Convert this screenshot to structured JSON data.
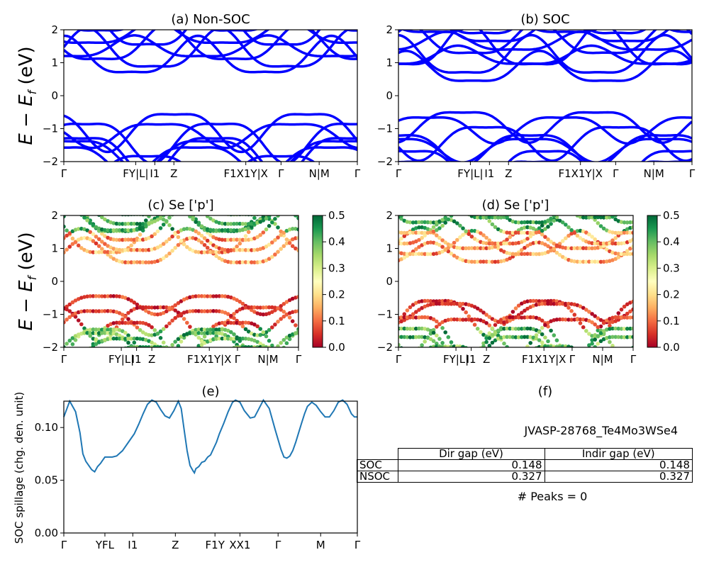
{
  "chart_data": [
    {
      "id": "a",
      "type": "line",
      "title": "(a) Non-SOC",
      "ylabel": "E - E_f (eV)",
      "ylim": [
        -2,
        2
      ],
      "yticks": [
        "−2",
        "−1",
        "0",
        "1",
        "2"
      ],
      "kpath_labels": [
        "Γ",
        "FY|L|",
        "I1",
        "Z",
        "F1X1Y|X",
        "Γ",
        "N|M",
        "Γ"
      ],
      "band_color": "#0000ff",
      "gap_ev": 0.327
    },
    {
      "id": "b",
      "type": "line",
      "title": "(b) SOC",
      "ylim": [
        -2,
        2
      ],
      "yticks": [
        "−2",
        "−1",
        "0",
        "1",
        "2"
      ],
      "kpath_labels": [
        "Γ",
        "FY|L|",
        "I1",
        "Z",
        "F1X1Y|X",
        "Γ",
        "N|M",
        "Γ"
      ],
      "band_color": "#0000ff",
      "gap_ev": 0.148
    },
    {
      "id": "c",
      "type": "scatter",
      "title": "(c)  Se ['p']",
      "ylabel": "E - E_f (eV)",
      "ylim": [
        -2,
        2
      ],
      "yticks": [
        "−2",
        "−1",
        "0",
        "1",
        "2"
      ],
      "kpath_labels": [
        "Γ",
        "FY|L|",
        "I1",
        "Z",
        "F1X1Y|X",
        "Γ",
        "N|M",
        "Γ"
      ],
      "colorbar": {
        "cmap": "RdYlGn",
        "range": [
          0.0,
          0.5
        ],
        "ticks": [
          "0.0",
          "0.1",
          "0.2",
          "0.3",
          "0.4",
          "0.5"
        ]
      }
    },
    {
      "id": "d",
      "type": "scatter",
      "title": "(d) Se ['p']",
      "ylim": [
        -2,
        2
      ],
      "yticks": [
        "−2",
        "−1",
        "0",
        "1",
        "2"
      ],
      "kpath_labels": [
        "Γ",
        "FY|L|",
        "I1",
        "Z",
        "F1X1Y|X",
        "Γ",
        "N|M",
        "Γ"
      ],
      "colorbar": {
        "cmap": "RdYlGn",
        "range": [
          0.0,
          0.5
        ],
        "ticks": [
          "0.0",
          "0.1",
          "0.2",
          "0.3",
          "0.4",
          "0.5"
        ]
      }
    },
    {
      "id": "e",
      "type": "line",
      "title": "(e)",
      "ylabel": "SOC spillage (chg. den. unit)",
      "ylim": [
        0.0,
        0.125
      ],
      "yticks": [
        "0.00",
        "0.05",
        "0.10"
      ],
      "kpath_labels": [
        "Γ",
        "YFL",
        "I1",
        "Z",
        "F1Y",
        "XX1",
        "Γ",
        "M",
        "Γ"
      ],
      "x": [
        0,
        0.02,
        0.04,
        0.055,
        0.065,
        0.075,
        0.085,
        0.095,
        0.105,
        0.115,
        0.125,
        0.13,
        0.135,
        0.14,
        0.145,
        0.155,
        0.165,
        0.18,
        0.2,
        0.22,
        0.24,
        0.255,
        0.27,
        0.285,
        0.3,
        0.315,
        0.33,
        0.345,
        0.36,
        0.375,
        0.39,
        0.4,
        0.41,
        0.42,
        0.43,
        0.44,
        0.445,
        0.45,
        0.46,
        0.47,
        0.48,
        0.49,
        0.5,
        0.51,
        0.52,
        0.53,
        0.545,
        0.56,
        0.575,
        0.585,
        0.6,
        0.615,
        0.635,
        0.65,
        0.665,
        0.68,
        0.7,
        0.72,
        0.74,
        0.75,
        0.76,
        0.77,
        0.78,
        0.79,
        0.8,
        0.81,
        0.82,
        0.83,
        0.845,
        0.86,
        0.875,
        0.89,
        0.905,
        0.92,
        0.935,
        0.95,
        0.965,
        0.98,
        0.99,
        1.0
      ],
      "y": [
        0.11,
        0.125,
        0.115,
        0.095,
        0.075,
        0.068,
        0.064,
        0.06,
        0.058,
        0.063,
        0.066,
        0.068,
        0.07,
        0.072,
        0.072,
        0.072,
        0.072,
        0.073,
        0.078,
        0.086,
        0.094,
        0.103,
        0.113,
        0.122,
        0.126,
        0.124,
        0.117,
        0.111,
        0.109,
        0.116,
        0.125,
        0.118,
        0.098,
        0.078,
        0.064,
        0.059,
        0.057,
        0.061,
        0.063,
        0.067,
        0.068,
        0.072,
        0.074,
        0.08,
        0.086,
        0.094,
        0.104,
        0.115,
        0.124,
        0.126,
        0.124,
        0.116,
        0.109,
        0.11,
        0.118,
        0.126,
        0.118,
        0.098,
        0.079,
        0.072,
        0.071,
        0.073,
        0.078,
        0.086,
        0.095,
        0.104,
        0.113,
        0.12,
        0.124,
        0.121,
        0.115,
        0.11,
        0.11,
        0.116,
        0.124,
        0.126,
        0.122,
        0.113,
        0.11,
        0.11
      ],
      "line_color": "#1f77b4"
    },
    {
      "id": "f",
      "type": "table",
      "title": "(f)",
      "material": "JVASP-28768_Te4Mo3WSe4",
      "columns": [
        "Dir gap (eV)",
        "Indir gap (eV)"
      ],
      "rows": [
        {
          "label": "SOC",
          "dir": "0.148",
          "indir": "0.148"
        },
        {
          "label": "NSOC",
          "dir": "0.327",
          "indir": "0.327"
        }
      ],
      "peaks_text": "# Peaks = 0"
    }
  ]
}
